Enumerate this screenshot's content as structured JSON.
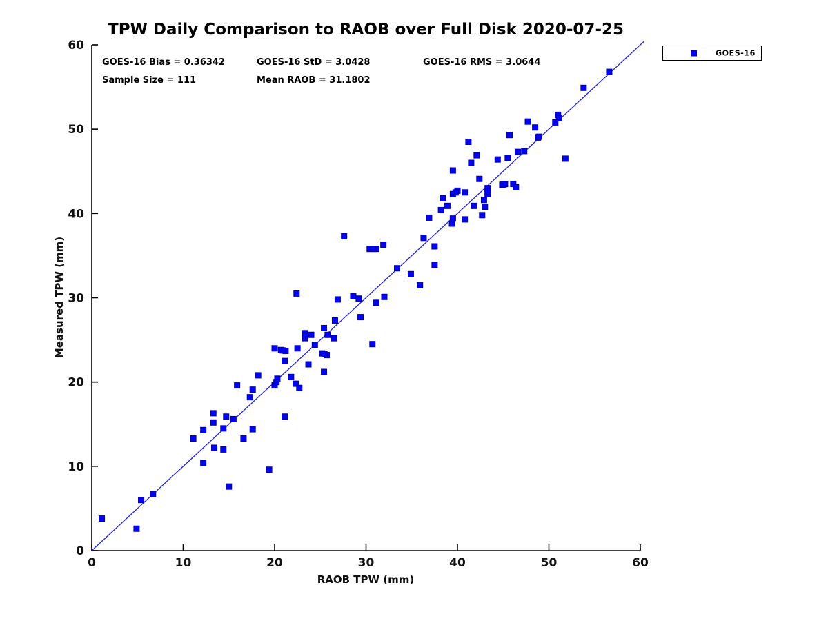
{
  "chart_data": {
    "type": "scatter",
    "title": "TPW Daily Comparison to RAOB over Full Disk 2020-07-25",
    "xlabel": "RAOB TPW (mm)",
    "ylabel": "Measured TPW (mm)",
    "xlim": [
      0,
      60
    ],
    "ylim": [
      0,
      60
    ],
    "xticks": [
      0,
      10,
      20,
      30,
      40,
      50,
      60
    ],
    "yticks": [
      0,
      10,
      20,
      30,
      40,
      50,
      60
    ],
    "grid": false,
    "legend_position": "outside-top-right",
    "annotations": [
      "GOES-16 Bias = 0.36342",
      "GOES-16 StD = 3.0428",
      "GOES-16 RMS = 3.0644",
      "Sample Size = 111",
      "Mean RAOB = 31.1802"
    ],
    "reference_line": {
      "from": [
        0,
        0
      ],
      "to": [
        60.4,
        60.4
      ],
      "style": "solid",
      "color": "#2222dd"
    },
    "series": [
      {
        "name": "GOES-16",
        "marker": "square",
        "color": "#0404f0",
        "sample_size": 111,
        "points": [
          [
            1.1,
            3.8
          ],
          [
            4.9,
            2.6
          ],
          [
            5.4,
            6.0
          ],
          [
            6.7,
            6.7
          ],
          [
            11.1,
            13.3
          ],
          [
            12.2,
            14.3
          ],
          [
            12.2,
            10.4
          ],
          [
            13.3,
            16.3
          ],
          [
            13.3,
            15.2
          ],
          [
            13.4,
            12.2
          ],
          [
            14.4,
            14.5
          ],
          [
            14.4,
            12.0
          ],
          [
            14.7,
            15.9
          ],
          [
            15.0,
            7.6
          ],
          [
            15.5,
            15.6
          ],
          [
            16.6,
            13.3
          ],
          [
            17.6,
            14.4
          ],
          [
            19.4,
            9.6
          ],
          [
            21.1,
            15.9
          ],
          [
            15.9,
            19.6
          ],
          [
            17.3,
            18.2
          ],
          [
            17.6,
            19.1
          ],
          [
            18.2,
            20.8
          ],
          [
            20.0,
            24.0
          ],
          [
            20.0,
            19.6
          ],
          [
            20.2,
            20.0
          ],
          [
            20.3,
            20.4
          ],
          [
            20.7,
            23.8
          ],
          [
            21.2,
            23.7
          ],
          [
            20.9,
            23.75
          ],
          [
            21.1,
            22.5
          ],
          [
            21.8,
            20.6
          ],
          [
            22.3,
            19.8
          ],
          [
            22.7,
            19.3
          ],
          [
            22.5,
            24.0
          ],
          [
            23.7,
            22.1
          ],
          [
            25.4,
            21.2
          ],
          [
            23.3,
            25.8
          ],
          [
            23.3,
            25.2
          ],
          [
            23.35,
            25.5
          ],
          [
            24.0,
            25.6
          ],
          [
            24.4,
            24.4
          ],
          [
            25.4,
            26.4
          ],
          [
            25.8,
            25.6
          ],
          [
            26.5,
            25.2
          ],
          [
            25.2,
            23.4
          ],
          [
            25.7,
            23.2
          ],
          [
            25.45,
            23.3
          ],
          [
            26.6,
            27.3
          ],
          [
            29.4,
            27.7
          ],
          [
            30.7,
            24.5
          ],
          [
            22.4,
            30.5
          ],
          [
            26.9,
            29.8
          ],
          [
            28.6,
            30.2
          ],
          [
            29.2,
            29.9
          ],
          [
            30.4,
            35.8
          ],
          [
            31.1,
            35.8
          ],
          [
            30.8,
            35.8
          ],
          [
            31.1,
            29.4
          ],
          [
            32.0,
            30.1
          ],
          [
            31.9,
            36.3
          ],
          [
            27.6,
            37.3
          ],
          [
            33.4,
            33.5
          ],
          [
            34.9,
            32.8
          ],
          [
            35.9,
            31.5
          ],
          [
            36.3,
            37.1
          ],
          [
            37.5,
            36.1
          ],
          [
            37.5,
            33.9
          ],
          [
            36.9,
            39.5
          ],
          [
            38.2,
            40.4
          ],
          [
            38.4,
            41.8
          ],
          [
            38.9,
            40.9
          ],
          [
            39.4,
            38.8
          ],
          [
            39.5,
            39.4
          ],
          [
            39.5,
            42.3
          ],
          [
            40.0,
            42.7
          ],
          [
            39.8,
            42.5
          ],
          [
            40.8,
            42.5
          ],
          [
            40.8,
            39.3
          ],
          [
            41.8,
            40.9
          ],
          [
            41.5,
            46.0
          ],
          [
            39.5,
            45.1
          ],
          [
            41.2,
            48.5
          ],
          [
            42.1,
            46.9
          ],
          [
            42.4,
            44.1
          ],
          [
            42.7,
            39.8
          ],
          [
            42.9,
            41.6
          ],
          [
            43.0,
            40.8
          ],
          [
            43.3,
            43.0
          ],
          [
            43.3,
            42.3
          ],
          [
            43.3,
            42.6
          ],
          [
            44.9,
            43.4
          ],
          [
            45.2,
            43.5
          ],
          [
            45.05,
            43.45
          ],
          [
            46.1,
            43.5
          ],
          [
            46.4,
            43.1
          ],
          [
            44.4,
            46.4
          ],
          [
            45.5,
            46.6
          ],
          [
            46.6,
            47.3
          ],
          [
            47.3,
            47.4
          ],
          [
            51.8,
            46.5
          ],
          [
            45.7,
            49.3
          ],
          [
            47.7,
            50.9
          ],
          [
            48.5,
            50.2
          ],
          [
            48.8,
            49.0
          ],
          [
            48.9,
            49.1
          ],
          [
            50.7,
            50.8
          ],
          [
            51.0,
            51.7
          ],
          [
            51.1,
            51.3
          ],
          [
            53.8,
            54.9
          ],
          [
            56.6,
            56.8
          ]
        ]
      }
    ]
  },
  "colors": {
    "marker": "#0404f0",
    "marker_edge": "#0000a8",
    "line": "#2222dd",
    "axis": "#000000",
    "tick_label": "#111111"
  }
}
